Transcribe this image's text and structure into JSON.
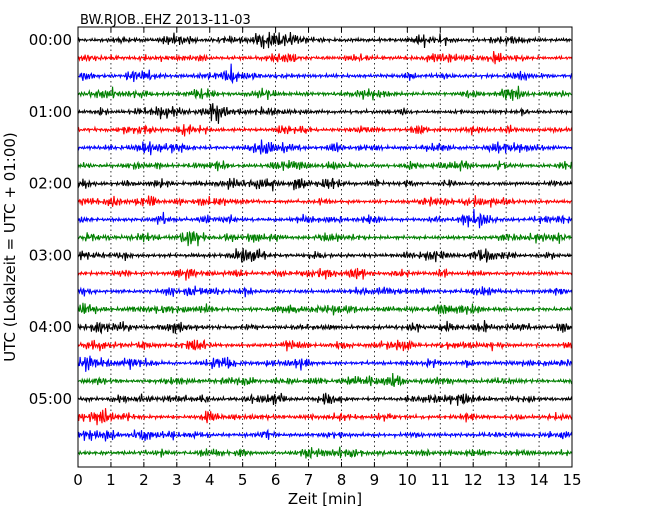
{
  "chart_data": {
    "type": "line",
    "title": "BW.RJOB..EHZ 2013-11-03",
    "xlabel": "Zeit  [min]",
    "ylabel": "UTC (Lokalzeit = UTC + 01:00)",
    "xlim": [
      0,
      15
    ],
    "x_ticks": [
      "0",
      "1",
      "2",
      "3",
      "4",
      "5",
      "6",
      "7",
      "8",
      "9",
      "10",
      "11",
      "12",
      "13",
      "14",
      "15"
    ],
    "y_tick_labels": [
      "00:00",
      "01:00",
      "02:00",
      "03:00",
      "04:00",
      "05:00"
    ],
    "grid": "vertical dotted lines at each minute",
    "line_count": 24,
    "minutes_per_line": 15,
    "colors": [
      "#000000",
      "#ff0000",
      "#0000ff",
      "#008000"
    ]
  }
}
